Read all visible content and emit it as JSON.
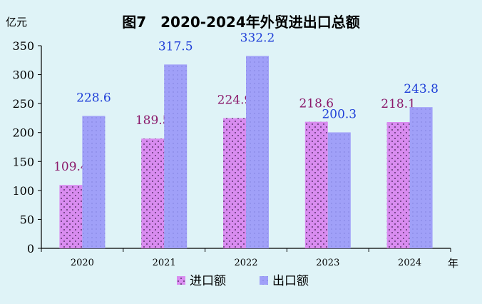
{
  "chart_data": {
    "type": "bar",
    "title": "图7　2020-2024年外贸进出口总额",
    "ylabel": "亿元",
    "xlabel": "年",
    "categories": [
      "2020",
      "2021",
      "2022",
      "2023",
      "2024"
    ],
    "ylim": [
      0,
      350
    ],
    "yticks": [
      0,
      50,
      100,
      150,
      200,
      250,
      300,
      350
    ],
    "series": [
      {
        "name": "进口额",
        "values": [
          109.4,
          189.5,
          224.9,
          218.6,
          218.1
        ],
        "color": "#d98cf0",
        "label_color": "#8b1a6b"
      },
      {
        "name": "出口额",
        "values": [
          228.6,
          317.5,
          332.2,
          200.3,
          243.8
        ],
        "color": "#9f9ff7",
        "label_color": "#2040d8"
      }
    ],
    "legend": "bottom-center",
    "grid": false
  }
}
